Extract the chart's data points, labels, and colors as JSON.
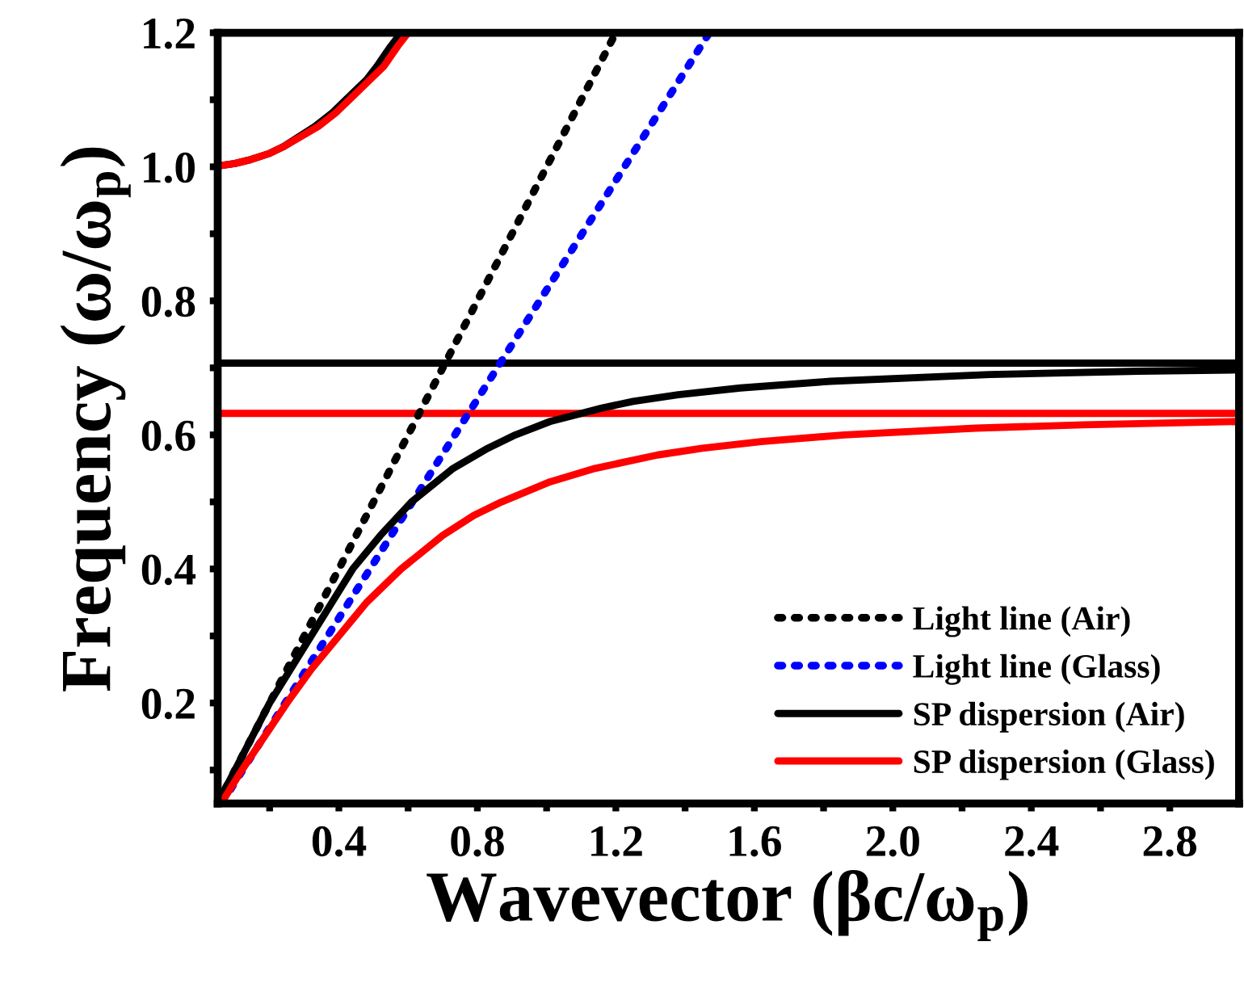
{
  "chart_data": {
    "type": "line",
    "xlabel": "Wavevector (βc/ω$_{p}$)",
    "ylabel": "Frequency (ω/ω$_{p}$)",
    "xlim": [
      0.05,
      3.0
    ],
    "ylim": [
      0.05,
      1.2
    ],
    "xticks": [
      {
        "value": 0.2,
        "label": null
      },
      0.4,
      {
        "value": 0.6,
        "label": null
      },
      0.8,
      {
        "value": 1.0,
        "label": null
      },
      1.2,
      {
        "value": 1.4,
        "label": null
      },
      1.6,
      {
        "value": 1.8,
        "label": null
      },
      {
        "value": 2.0,
        "label": "2.0"
      },
      {
        "value": 2.2,
        "label": null
      },
      2.4,
      {
        "value": 2.6,
        "label": null
      },
      2.8
    ],
    "yticks": [
      {
        "value": 0.1,
        "label": null
      },
      0.2,
      {
        "value": 0.3,
        "label": null
      },
      0.4,
      {
        "value": 0.5,
        "label": null
      },
      0.6,
      {
        "value": 0.7,
        "label": null
      },
      0.8,
      {
        "value": 0.9,
        "label": null
      },
      {
        "value": 1.0,
        "label": "1.0"
      },
      {
        "value": 1.1,
        "label": null
      },
      1.2
    ],
    "grid": false,
    "legend": "bottom right",
    "marker": "none",
    "series": [
      {
        "name": "Light line (Air)",
        "color": "#000000",
        "line_style": "dotted",
        "x": [
          0.05,
          1.2
        ],
        "values": [
          0.05,
          1.2
        ]
      },
      {
        "name": "Light line (Glass)",
        "color": "#0000ff",
        "line_style": "dotted",
        "x": [
          0.0612,
          1.47
        ],
        "values": [
          0.05,
          1.2
        ]
      },
      {
        "name": "SP dispersion (Air)",
        "color": "#000000",
        "line_style": "solid",
        "x": [
          0.05,
          0.1,
          0.2,
          0.32,
          0.38,
          0.44,
          0.52,
          0.61,
          0.73,
          0.83,
          0.91,
          1.01,
          1.16,
          1.25,
          1.38,
          1.56,
          1.82,
          2.28,
          2.71,
          3.0
        ],
        "values": [
          0.05,
          0.1,
          0.2,
          0.3,
          0.35,
          0.4,
          0.45,
          0.5,
          0.55,
          0.58,
          0.6,
          0.62,
          0.64,
          0.65,
          0.66,
          0.67,
          0.68,
          0.69,
          0.695,
          0.697
        ]
      },
      {
        "color": "#000000",
        "line_style": "solid",
        "x": [
          0.06,
          0.1,
          0.14,
          0.2,
          0.24,
          0.33,
          0.38,
          0.42,
          0.48,
          0.51,
          0.55,
          0.58
        ],
        "values": [
          1.002,
          1.005,
          1.01,
          1.02,
          1.03,
          1.06,
          1.08,
          1.1,
          1.13,
          1.15,
          1.18,
          1.2
        ]
      },
      {
        "name": "SP dispersion (Glass)",
        "color": "#ff0000",
        "line_style": "solid",
        "x": [
          0.06,
          0.12,
          0.25,
          0.32,
          0.4,
          0.48,
          0.58,
          0.7,
          0.79,
          0.87,
          1.01,
          1.14,
          1.32,
          1.45,
          1.62,
          1.86,
          2.24,
          2.55,
          3.0
        ],
        "values": [
          0.05,
          0.1,
          0.2,
          0.25,
          0.3,
          0.35,
          0.4,
          0.45,
          0.48,
          0.5,
          0.53,
          0.55,
          0.57,
          0.58,
          0.59,
          0.6,
          0.61,
          0.615,
          0.62
        ]
      },
      {
        "color": "#ff0000",
        "line_style": "solid",
        "x": [
          0.06,
          0.1,
          0.14,
          0.2,
          0.24,
          0.34,
          0.39,
          0.43,
          0.49,
          0.53,
          0.57,
          0.6
        ],
        "values": [
          1.002,
          1.005,
          1.01,
          1.02,
          1.03,
          1.06,
          1.08,
          1.1,
          1.13,
          1.15,
          1.18,
          1.2
        ]
      }
    ],
    "ref_lines": [
      {
        "axis": "y",
        "value": 0.707,
        "color": "#000000",
        "line_style": "solid"
      },
      {
        "axis": "y",
        "value": 0.632,
        "color": "#ff0000",
        "line_style": "solid"
      }
    ]
  }
}
